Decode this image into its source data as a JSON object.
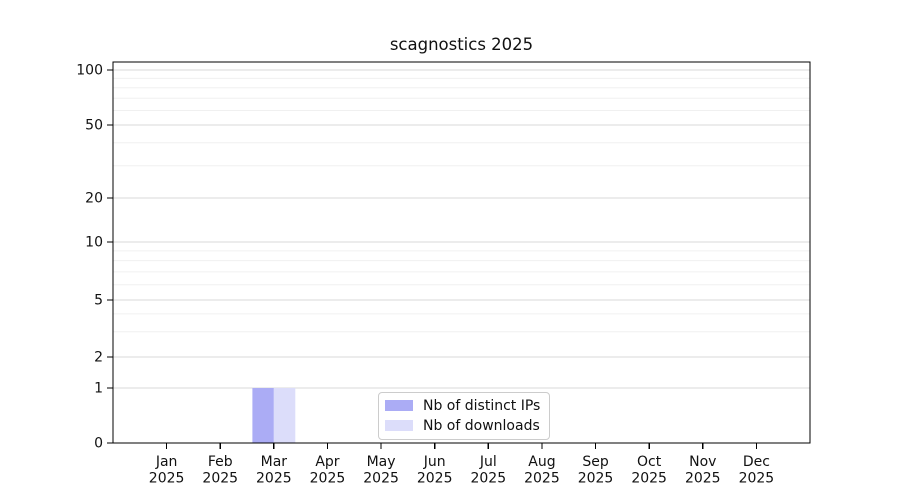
{
  "chart_data": {
    "type": "bar",
    "title": "scagnostics 2025",
    "x": {
      "categories": [
        "Jan",
        "Feb",
        "Mar",
        "Apr",
        "May",
        "Jun",
        "Jul",
        "Aug",
        "Sep",
        "Oct",
        "Nov",
        "Dec"
      ],
      "year_label": "2025"
    },
    "y": {
      "scale": "symlog",
      "ticks": [
        0,
        1,
        2,
        5,
        10,
        20,
        50,
        100
      ],
      "minor_ticks": [
        3,
        4,
        6,
        7,
        8,
        9,
        30,
        40,
        60,
        70,
        80,
        90
      ],
      "range": [
        0,
        110
      ],
      "grid": true
    },
    "series": [
      {
        "name": "Nb of distinct IPs",
        "color": "#abacf5",
        "values": [
          0,
          0,
          1,
          0,
          0,
          0,
          0,
          0,
          0,
          0,
          0,
          0
        ]
      },
      {
        "name": "Nb of downloads",
        "color": "#dcddfa",
        "values": [
          0,
          0,
          1,
          0,
          0,
          0,
          0,
          0,
          0,
          0,
          0,
          0
        ]
      }
    ],
    "legend": {
      "entries": [
        "Nb of distinct IPs",
        "Nb of downloads"
      ],
      "position": "bottom-center"
    }
  },
  "colors": {
    "axis": "#000000",
    "grid_major": "#d9d9d9",
    "grid_minor": "#f0f0f0",
    "text": "#111111",
    "legend_border": "#cccccc"
  }
}
